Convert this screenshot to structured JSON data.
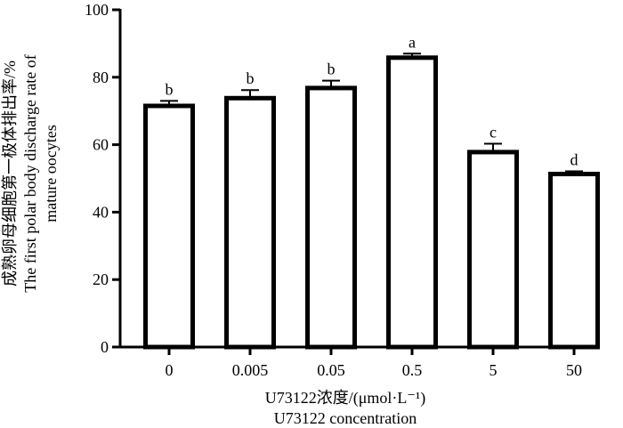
{
  "chart_data": {
    "type": "bar",
    "categories": [
      "0",
      "0.005",
      "0.05",
      "0.5",
      "5",
      "50"
    ],
    "values": [
      71.5,
      73.8,
      76.8,
      85.8,
      57.8,
      51.3
    ],
    "errors": [
      1.5,
      2.4,
      2.2,
      1.2,
      2.5,
      0.8
    ],
    "significance_labels": [
      "b",
      "b",
      "b",
      "a",
      "c",
      "d"
    ],
    "xlabel_line1": "U73122浓度/(μmol·L⁻¹)",
    "xlabel_line2": "U73122 concentration",
    "ylabel_line1": "成熟卵母细胞第一极体排出率/%",
    "ylabel_line2": "The first polar body discharge rate of",
    "ylabel_line3": "mature oocytes",
    "ylim": [
      0,
      100
    ],
    "yticks": [
      "0",
      "20",
      "40",
      "60",
      "80",
      "100"
    ],
    "grid": false,
    "colors": {
      "bar_fill": "#ffffff",
      "bar_stroke": "#000000",
      "axis": "#000000"
    }
  }
}
